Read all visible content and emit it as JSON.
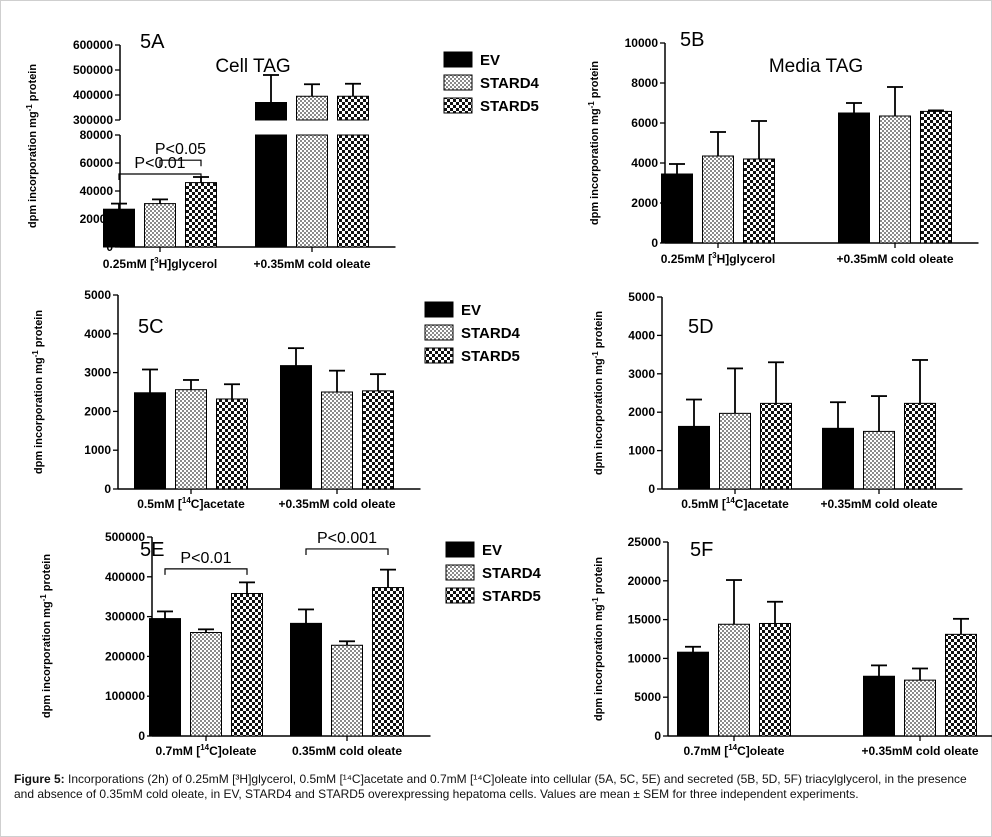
{
  "caption": {
    "label": "Figure 5:",
    "text": "Incorporations (2h) of 0.25mM [³H]glycerol, 0.5mM [¹⁴C]acetate and 0.7mM [¹⁴C]oleate into cellular (5A, 5C, 5E) and secreted (5B, 5D, 5F) triacylglycerol, in the presence and absence of 0.35mM cold oleate, in EV, STARD4 and STARD5 overexpressing hepatoma cells. Values are mean ± SEM for three independent experiments."
  },
  "colors": {
    "EV": "#000000",
    "STARD4": "pattern-fine-checker",
    "STARD5": "pattern-coarse-checker"
  },
  "chart_data": [
    {
      "id": "5A",
      "type": "bar",
      "panel_label": "5A",
      "title": "Cell TAG",
      "ylabel": "dpm incorporation mg-1 protein",
      "ylabel_main": "dpm incorporation mg",
      "ylabel_sup": "-1",
      "ylabel_tail": " protein",
      "categories": [
        "0.25mM [3H]glycerol",
        "+0.35mM cold oleate"
      ],
      "category_labels": [
        [
          "0.25mM [",
          "3",
          "H]glycerol"
        ],
        [
          "+0.35mM cold oleate",
          "",
          ""
        ]
      ],
      "broken_axis": true,
      "lower_segment": {
        "ylim": [
          0,
          80000
        ],
        "ticks": [
          0,
          20000,
          40000,
          60000,
          80000
        ],
        "tick_labels": [
          "0",
          "20000",
          "40000",
          "60000",
          "80000"
        ]
      },
      "upper_segment": {
        "ylim": [
          300000,
          600000
        ],
        "ticks": [
          300000,
          400000,
          500000,
          600000
        ],
        "tick_labels": [
          "300000",
          "400000",
          "500000",
          "600000"
        ]
      },
      "series": [
        {
          "name": "EV",
          "values": [
            27000,
            370000
          ],
          "errors": [
            4000,
            110000
          ]
        },
        {
          "name": "STARD4",
          "values": [
            31000,
            395000
          ],
          "errors": [
            3000,
            48000
          ]
        },
        {
          "name": "STARD5",
          "values": [
            46000,
            395000
          ],
          "errors": [
            4000,
            50000
          ]
        }
      ],
      "legend": [
        "EV",
        "STARD4",
        "STARD5"
      ],
      "annotations": [
        {
          "text": "P<0.01",
          "group": 0,
          "from": 0,
          "to": 2,
          "value": 84000
        },
        {
          "text": "P<0.05",
          "group": 0,
          "from": 1,
          "to": 2,
          "value": 62000
        }
      ]
    },
    {
      "id": "5B",
      "type": "bar",
      "panel_label": "5B",
      "title": "Media TAG",
      "ylabel": "dpm incorporation mg-1 protein",
      "ylabel_main": "dpm incorporation mg",
      "ylabel_sup": "-1",
      "ylabel_tail": " protein",
      "categories": [
        "0.25mM [3H]glycerol",
        "+0.35mM cold oleate"
      ],
      "category_labels": [
        [
          "0.25mM [",
          "3",
          "H]glycerol"
        ],
        [
          "+0.35mM cold oleate",
          "",
          ""
        ]
      ],
      "ylim": [
        0,
        10000
      ],
      "ticks": [
        0,
        2000,
        4000,
        6000,
        8000,
        10000
      ],
      "tick_labels": [
        "0",
        "2000",
        "4000",
        "6000",
        "8000",
        "10000"
      ],
      "series": [
        {
          "name": "EV",
          "values": [
            3450,
            6500
          ],
          "errors": [
            500,
            500
          ]
        },
        {
          "name": "STARD4",
          "values": [
            4350,
            6350
          ],
          "errors": [
            1200,
            1450
          ]
        },
        {
          "name": "STARD5",
          "values": [
            4200,
            6580
          ],
          "errors": [
            1900,
            50
          ]
        }
      ],
      "legend": [],
      "annotations": []
    },
    {
      "id": "5C",
      "type": "bar",
      "panel_label": "5C",
      "title": "",
      "ylabel": "dpm incorporation mg-1 protein",
      "ylabel_main": "dpm incorporation mg",
      "ylabel_sup": "-1",
      "ylabel_tail": " protein",
      "categories": [
        "0.5mM [14C]acetate",
        "+0.35mM cold oleate"
      ],
      "category_labels": [
        [
          "0.5mM [",
          "14",
          "C]acetate"
        ],
        [
          "+0.35mM cold oleate",
          "",
          ""
        ]
      ],
      "ylim": [
        0,
        5000
      ],
      "ticks": [
        0,
        1000,
        2000,
        3000,
        4000,
        5000
      ],
      "tick_labels": [
        "0",
        "1000",
        "2000",
        "3000",
        "4000",
        "5000"
      ],
      "series": [
        {
          "name": "EV",
          "values": [
            2480,
            3180
          ],
          "errors": [
            600,
            450
          ]
        },
        {
          "name": "STARD4",
          "values": [
            2560,
            2500
          ],
          "errors": [
            250,
            550
          ]
        },
        {
          "name": "STARD5",
          "values": [
            2320,
            2530
          ],
          "errors": [
            380,
            430
          ]
        }
      ],
      "legend": [
        "EV",
        "STARD4",
        "STARD5"
      ],
      "annotations": []
    },
    {
      "id": "5D",
      "type": "bar",
      "panel_label": "5D",
      "title": "",
      "ylabel": "dpm incorporation mg-1 protein",
      "ylabel_main": "dpm incorporation mg",
      "ylabel_sup": "-1",
      "ylabel_tail": " protein",
      "categories": [
        "0.5mM [14C]acetate",
        "+0.35mM cold oleate"
      ],
      "category_labels": [
        [
          "0.5mM [",
          "14",
          "C]acetate"
        ],
        [
          "+0.35mM cold oleate",
          "",
          ""
        ]
      ],
      "ylim": [
        0,
        5000
      ],
      "ticks": [
        0,
        1000,
        2000,
        3000,
        4000,
        5000
      ],
      "tick_labels": [
        "0",
        "1000",
        "2000",
        "3000",
        "4000",
        "5000"
      ],
      "series": [
        {
          "name": "EV",
          "values": [
            1630,
            1580
          ],
          "errors": [
            700,
            680
          ]
        },
        {
          "name": "STARD4",
          "values": [
            1970,
            1500
          ],
          "errors": [
            1170,
            920
          ]
        },
        {
          "name": "STARD5",
          "values": [
            2230,
            2230
          ],
          "errors": [
            1070,
            1130
          ]
        }
      ],
      "legend": [],
      "annotations": []
    },
    {
      "id": "5E",
      "type": "bar",
      "panel_label": "5E",
      "title": "",
      "ylabel": "dpm incorporation mg-1 protein",
      "ylabel_main": "dpm incorporation mg",
      "ylabel_sup": "-1",
      "ylabel_tail": " protein",
      "categories": [
        "0.7mM [14C]oleate",
        "0.35mM cold oleate"
      ],
      "category_labels": [
        [
          "0.7mM [",
          "14",
          "C]oleate"
        ],
        [
          "0.35mM cold oleate",
          "",
          ""
        ]
      ],
      "ylim": [
        0,
        500000
      ],
      "ticks": [
        0,
        100000,
        200000,
        300000,
        400000,
        500000
      ],
      "tick_labels": [
        "0",
        "100000",
        "200000",
        "300000",
        "400000",
        "500000"
      ],
      "series": [
        {
          "name": "EV",
          "values": [
            295000,
            283000
          ],
          "errors": [
            18000,
            35000
          ]
        },
        {
          "name": "STARD4",
          "values": [
            260000,
            228000
          ],
          "errors": [
            8000,
            10000
          ]
        },
        {
          "name": "STARD5",
          "values": [
            358000,
            373000
          ],
          "errors": [
            28000,
            45000
          ]
        }
      ],
      "legend": [
        "EV",
        "STARD4",
        "STARD5"
      ],
      "annotations": [
        {
          "text": "P<0.01",
          "group": 0,
          "from": 0,
          "to": 2,
          "value": 420000
        },
        {
          "text": "P<0.001",
          "group": 1,
          "from": 0,
          "to": 2,
          "value": 470000
        }
      ]
    },
    {
      "id": "5F",
      "type": "bar",
      "panel_label": "5F",
      "title": "",
      "ylabel": "dpm incorporation mg-1 protein",
      "ylabel_main": "dpm incorporation mg",
      "ylabel_sup": "-1",
      "ylabel_tail": " protein",
      "categories": [
        "0.7mM [14C]oleate",
        "+0.35mM cold oleate"
      ],
      "category_labels": [
        [
          "0.7mM [",
          "14",
          "C]oleate"
        ],
        [
          "+0.35mM cold oleate",
          "",
          ""
        ]
      ],
      "ylim": [
        0,
        25000
      ],
      "ticks": [
        0,
        5000,
        10000,
        15000,
        20000,
        25000
      ],
      "tick_labels": [
        "0",
        "5000",
        "10000",
        "15000",
        "20000",
        "25000"
      ],
      "series": [
        {
          "name": "EV",
          "values": [
            10800,
            7700
          ],
          "errors": [
            700,
            1400
          ]
        },
        {
          "name": "STARD4",
          "values": [
            14400,
            7200
          ],
          "errors": [
            5700,
            1500
          ]
        },
        {
          "name": "STARD5",
          "values": [
            14500,
            13100
          ],
          "errors": [
            2800,
            2000
          ]
        }
      ],
      "legend": [],
      "annotations": []
    }
  ]
}
